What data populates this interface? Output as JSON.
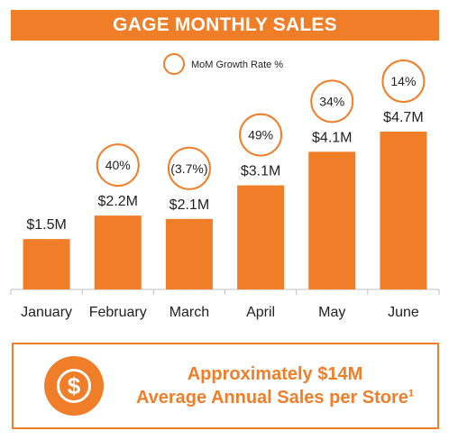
{
  "colors": {
    "accent": "#F07E29",
    "bar": "#F07E29",
    "text": "#222222",
    "axis": "#bfbfbf",
    "white": "#ffffff"
  },
  "header": {
    "title": "GAGE MONTHLY SALES"
  },
  "legend": {
    "label": "MoM Growth Rate %"
  },
  "summary": {
    "icon": "dollar-coin-icon",
    "line1": "Approximately $14M",
    "line2": "Average Annual Sales per Store",
    "footnote_marker": "1"
  },
  "chart_data": {
    "type": "bar",
    "title": "GAGE MONTHLY SALES",
    "categories": [
      "January",
      "February",
      "March",
      "April",
      "May",
      "June"
    ],
    "values": [
      1.5,
      2.2,
      2.1,
      3.1,
      4.1,
      4.7
    ],
    "value_labels": [
      "$1.5M",
      "$2.2M",
      "$2.1M",
      "$3.1M",
      "$4.1M",
      "$4.7M"
    ],
    "growth_labels": [
      "",
      "40%",
      "(3.7%)",
      "49%",
      "34%",
      "14%"
    ],
    "ylim": [
      0,
      4.7
    ],
    "grid": false,
    "legend_placement": "top-center",
    "xlabel": "",
    "ylabel": ""
  }
}
